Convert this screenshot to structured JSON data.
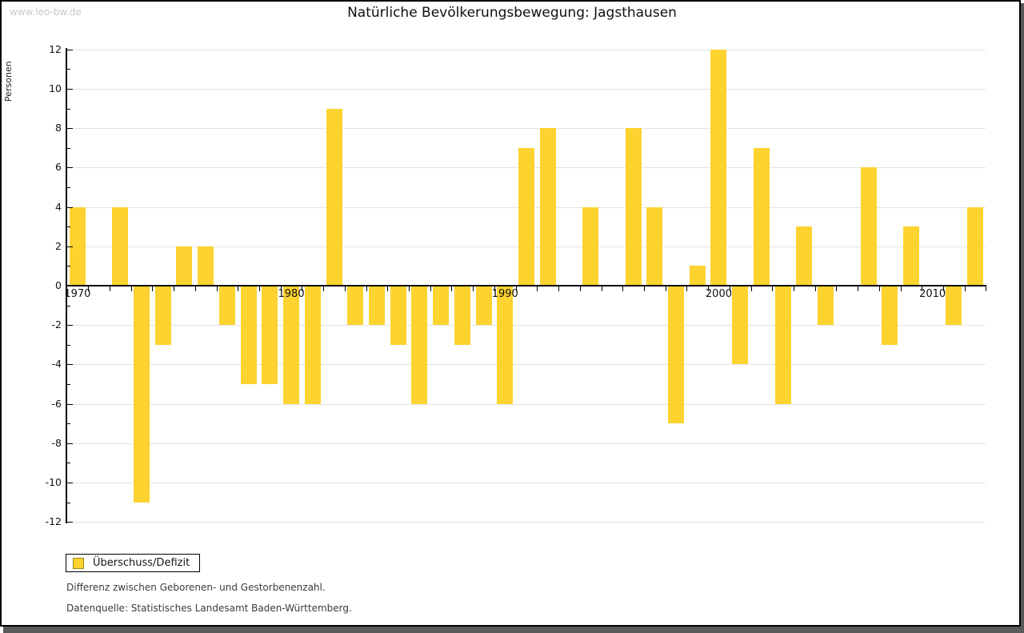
{
  "watermark": "www.leo-bw.de",
  "chart_data": {
    "type": "bar",
    "title": "Natürliche Bevölkerungsbewegung: Jagsthausen",
    "ylabel": "Personen",
    "xlabel": "",
    "ylim": [
      -12,
      12
    ],
    "y_ticks": [
      12,
      10,
      8,
      6,
      4,
      2,
      0,
      -2,
      -4,
      -6,
      -8,
      -10,
      -12
    ],
    "x_tick_labels": [
      1970,
      1980,
      1990,
      2000,
      2010
    ],
    "grid": true,
    "legend_position": "bottom-left",
    "bar_color": "#fcd32f",
    "categories": [
      1970,
      1971,
      1972,
      1973,
      1974,
      1975,
      1976,
      1977,
      1978,
      1979,
      1980,
      1981,
      1982,
      1983,
      1984,
      1985,
      1986,
      1987,
      1988,
      1989,
      1990,
      1991,
      1992,
      1993,
      1994,
      1995,
      1996,
      1997,
      1998,
      1999,
      2000,
      2001,
      2002,
      2003,
      2004,
      2005,
      2006,
      2007,
      2008,
      2009,
      2010,
      2011,
      2012
    ],
    "series": [
      {
        "name": "Überschuss/Defizit",
        "values": [
          4,
          0,
          4,
          -11,
          -3,
          2,
          2,
          -2,
          -5,
          -5,
          -6,
          -6,
          9,
          -2,
          -2,
          -3,
          -6,
          -2,
          -3,
          -2,
          -6,
          7,
          8,
          0,
          4,
          0,
          8,
          4,
          -7,
          1,
          12,
          -4,
          7,
          -6,
          3,
          -2,
          0,
          6,
          -3,
          3,
          0,
          -2,
          4
        ]
      }
    ]
  },
  "legend": {
    "label": "Überschuss/Defizit"
  },
  "footnotes": {
    "line1": "Differenz zwischen Geborenen- und Gestorbenenzahl.",
    "line2": "Datenquelle: Statistisches Landesamt Baden-Württemberg."
  },
  "colors": {
    "bar": "#fcd32f",
    "swatch_border": "#9b8616",
    "gridline": "#e4e4e4",
    "axis": "#000000",
    "watermark": "#c9c9c9",
    "frame_shadow": "#59595b"
  }
}
